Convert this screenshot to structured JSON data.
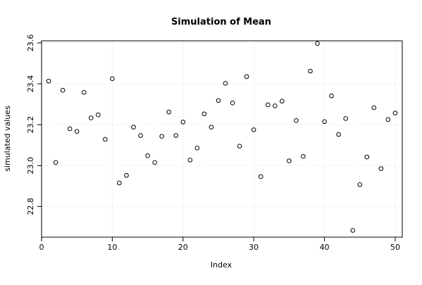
{
  "chart_data": {
    "type": "scatter",
    "title": "Simulation of Mean",
    "xlabel": "Index",
    "ylabel": "simulated values",
    "xlim": [
      0,
      51
    ],
    "ylim": [
      22.65,
      23.61
    ],
    "x_ticks": [
      0,
      10,
      20,
      30,
      40,
      50
    ],
    "x_tick_labels": [
      "0",
      "10",
      "20",
      "30",
      "40",
      "50"
    ],
    "y_ticks": [
      22.8,
      23.0,
      23.2,
      23.4,
      23.6
    ],
    "y_tick_labels": [
      "22.8",
      "23.0",
      "23.2",
      "23.4",
      "23.6"
    ],
    "grid": true,
    "legend": "none",
    "x": [
      1,
      2,
      3,
      4,
      5,
      6,
      7,
      8,
      9,
      10,
      11,
      12,
      13,
      14,
      15,
      16,
      17,
      18,
      19,
      20,
      21,
      22,
      23,
      24,
      25,
      26,
      27,
      28,
      29,
      30,
      31,
      32,
      33,
      34,
      35,
      36,
      37,
      38,
      39,
      40,
      41,
      42,
      43,
      44,
      45,
      46,
      47,
      48,
      49,
      50
    ],
    "y": [
      23.413,
      23.015,
      23.368,
      23.18,
      23.167,
      23.358,
      23.233,
      23.248,
      23.128,
      23.425,
      22.915,
      22.952,
      23.188,
      23.147,
      23.048,
      23.015,
      23.143,
      23.262,
      23.147,
      23.213,
      23.027,
      23.086,
      23.253,
      23.188,
      23.318,
      23.402,
      23.306,
      23.095,
      23.435,
      23.175,
      22.946,
      23.297,
      23.292,
      23.315,
      23.023,
      23.22,
      23.045,
      23.462,
      23.597,
      23.215,
      23.341,
      23.152,
      23.23,
      22.683,
      22.907,
      23.042,
      23.283,
      22.985,
      23.225,
      23.257
    ]
  }
}
